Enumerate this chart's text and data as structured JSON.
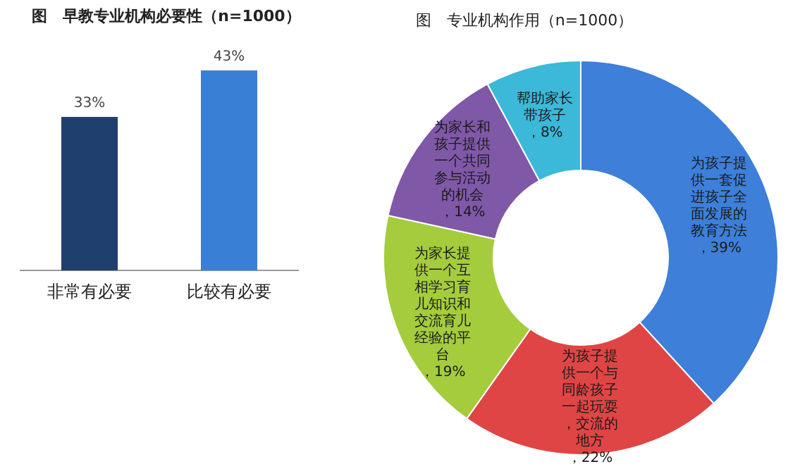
{
  "chart_data": [
    {
      "type": "bar",
      "title": "图　早教专业机构必要性（n=1000）",
      "categories": [
        "非常有必要",
        "比较有必要"
      ],
      "values": [
        33,
        43
      ],
      "colors": [
        "#1f3f6e",
        "#3a7fd6"
      ],
      "value_labels": [
        "33%",
        "43%"
      ]
    },
    {
      "type": "donut",
      "title": "图　专业机构作用（n=1000）",
      "categories": [
        "为孩子提供一套促进孩子全面发展的教育方法",
        "为孩子提供一个与同龄孩子一起玩耍，交流的地方",
        "为家长提供一个互相学习育儿知识和交流育儿经验的平台",
        "为家长和孩子提供一个共同参与活动的机会",
        "帮助家长带孩子"
      ],
      "values": [
        39,
        22,
        19,
        14,
        8
      ],
      "colors": [
        "#3d7fd9",
        "#e04545",
        "#a4cc3c",
        "#8058a8",
        "#3cb8d8"
      ],
      "value_labels": [
        "，39%",
        "，22%",
        "，19%",
        "，14%",
        "，8%"
      ]
    }
  ]
}
